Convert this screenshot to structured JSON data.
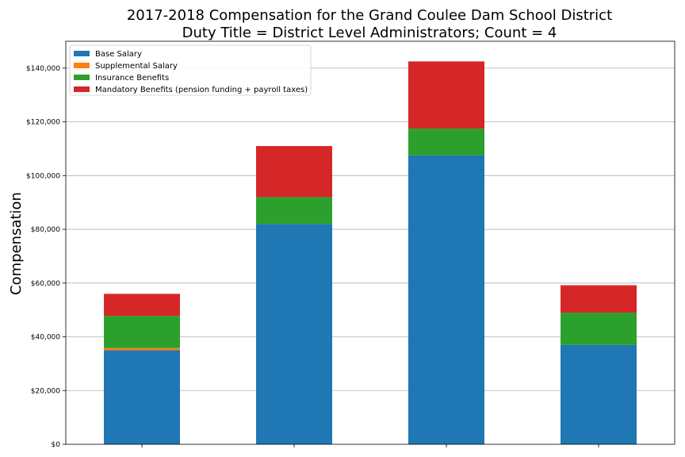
{
  "chart_data": {
    "type": "bar",
    "stacked": true,
    "title": "2017-2018 Compensation for the Grand Coulee Dam School District",
    "subtitle": "Duty Title = District Level Administrators; Count = 4",
    "xlabel": "",
    "ylabel": "Compensation",
    "ylim": [
      0,
      150000
    ],
    "yticks": [
      0,
      20000,
      40000,
      60000,
      80000,
      100000,
      120000,
      140000
    ],
    "ytick_labels": [
      "$0",
      "$20,000",
      "$40,000",
      "$60,000",
      "$80,000",
      "$100,000",
      "$120,000",
      "$140,000"
    ],
    "grid": "horizontal",
    "legend_position": "top-left",
    "categories": [
      "",
      "",
      "",
      ""
    ],
    "series": [
      {
        "name": "Base Salary",
        "color": "#1f77b4",
        "values": [
          35000,
          82000,
          107500,
          37000
        ]
      },
      {
        "name": "Supplemental Salary",
        "color": "#ff7f0e",
        "values": [
          800,
          0,
          0,
          0
        ]
      },
      {
        "name": "Insurance Benefits",
        "color": "#2ca02c",
        "values": [
          12000,
          10000,
          10000,
          12000
        ]
      },
      {
        "name": "Mandatory Benefits (pension funding + payroll taxes)",
        "color": "#d62728",
        "values": [
          8200,
          19000,
          25000,
          10200
        ]
      }
    ]
  }
}
